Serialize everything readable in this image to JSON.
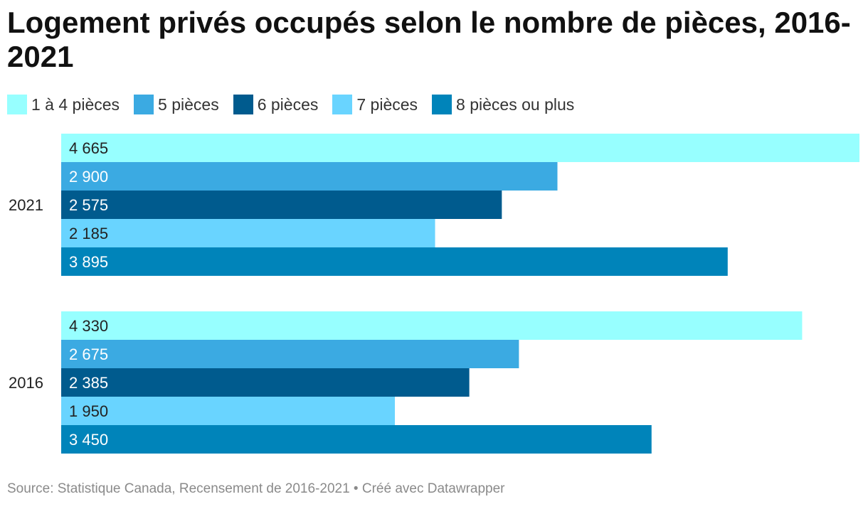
{
  "chart_data": {
    "type": "bar",
    "orientation": "horizontal",
    "title": "Logement privés occupés selon le nombre de pièces, 2016-2021",
    "groups": [
      "2021",
      "2016"
    ],
    "series": [
      {
        "name": "1 à 4 pièces",
        "color": "#97FFFF",
        "values": [
          4665,
          4330
        ],
        "labels": [
          "4 665",
          "4 330"
        ]
      },
      {
        "name": "5 pièces",
        "color": "#3BAAE2",
        "values": [
          2900,
          2675
        ],
        "labels": [
          "2 900",
          "2 675"
        ]
      },
      {
        "name": "6 pièces",
        "color": "#005B8E",
        "values": [
          2575,
          2385
        ],
        "labels": [
          "2 575",
          "2 385"
        ]
      },
      {
        "name": "7 pièces",
        "color": "#69D4FF",
        "values": [
          2185,
          1950
        ],
        "labels": [
          "2 185",
          "1 950"
        ]
      },
      {
        "name": "8 pièces ou plus",
        "color": "#0084BA",
        "values": [
          3895,
          3450
        ],
        "labels": [
          "3 895",
          "3 450"
        ]
      }
    ],
    "xlim": [
      0,
      4665
    ],
    "grid": false,
    "legend_position": "top-left"
  },
  "source": "Source: Statistique Canada, Recensement de 2016-2021 • Créé avec Datawrapper"
}
